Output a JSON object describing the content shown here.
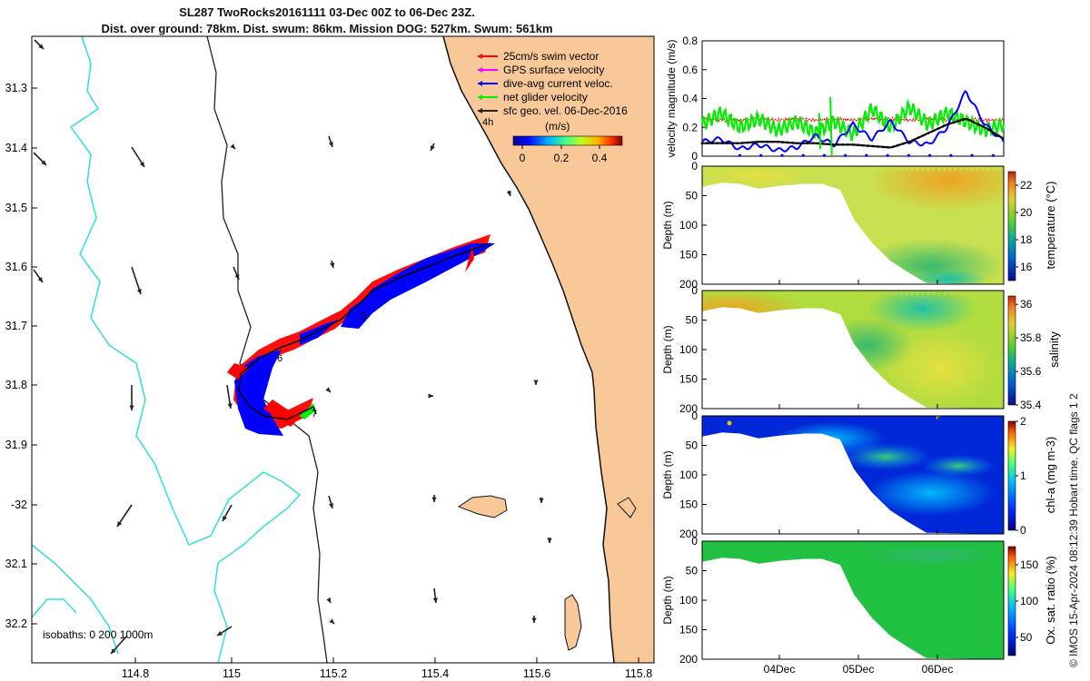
{
  "title": {
    "line1": "SL287 TwoRocks20161111 03-Dec 00Z to 06-Dec 23Z.",
    "line2": "Dist. over ground: 78km. Dist. swum: 86km. Mission DOG: 527km. Swum: 561km"
  },
  "credit": "© IMOS 15-Apr-2024 08:12:39 Hobart time. QC flags 1  2",
  "colors": {
    "land": "#f9c898",
    "coast": "#111111",
    "isobath200": "#222222",
    "isobath1000": "#33dddd",
    "swim": "#ff0000",
    "gps": "#ff00ff",
    "dac": "#0000ff",
    "net": "#00ee00",
    "sfc": "#222222"
  },
  "map": {
    "lon_ticks": [
      "114.8",
      "115",
      "115.2",
      "115.4",
      "115.6",
      "115.8"
    ],
    "lat_ticks": [
      "31.3",
      "31.4",
      "31.5",
      "31.6",
      "31.7",
      "31.8",
      "31.9",
      "-32",
      "32.1",
      "32.2"
    ],
    "legend": [
      {
        "label": "25cm/s swim vector",
        "key": "swim"
      },
      {
        "label": "GPS surface velocity",
        "key": "gps"
      },
      {
        "label": "dive-avg current veloc.",
        "key": "dac"
      },
      {
        "label": "net glider velocity",
        "key": "net"
      },
      {
        "label": "sfc geo. vel. 06-Dec-2016",
        "key": "sfc"
      }
    ],
    "colorbar_label": "(m/s)",
    "colorbar_ticks": [
      "0",
      "0.2",
      "0.4"
    ],
    "isobath_text": "isobaths: 0  200  1000m",
    "track_markers": [
      "4h",
      "5",
      "6",
      "7"
    ]
  },
  "chart_data": [
    {
      "type": "line",
      "ylabel": "velocity magnitude (m/s)",
      "ylim": [
        0,
        0.8
      ],
      "yticks": [
        "0",
        "0.2",
        "0.4",
        "0.6",
        "0.8"
      ],
      "t": [
        0,
        0.25,
        0.5,
        0.75,
        1.0,
        1.25,
        1.5,
        1.75,
        2.0,
        2.25,
        2.5,
        2.75,
        3.0,
        3.25,
        3.5,
        3.75,
        4.0
      ],
      "series": [
        {
          "name": "swim",
          "color": "#ff0000",
          "values": [
            0.26,
            0.25,
            0.25,
            0.26,
            0.25,
            0.26,
            0.25,
            0.26,
            0.25,
            0.26,
            0.26,
            0.25,
            0.26,
            0.25,
            0.26,
            0.25,
            0.25
          ]
        },
        {
          "name": "net glider",
          "color": "#00ee00",
          "values": [
            0.22,
            0.3,
            0.2,
            0.26,
            0.18,
            0.24,
            0.16,
            0.24,
            0.15,
            0.33,
            0.2,
            0.34,
            0.22,
            0.3,
            0.24,
            0.18,
            0.22
          ]
        },
        {
          "name": "dive-avg current",
          "color": "#0000ff",
          "values": [
            0.1,
            0.12,
            0.05,
            0.08,
            0.04,
            0.06,
            0.14,
            0.08,
            0.22,
            0.12,
            0.24,
            0.1,
            0.08,
            0.2,
            0.45,
            0.22,
            0.1
          ]
        },
        {
          "name": "sfc geo",
          "color": "#111111",
          "values": [
            0.09,
            0.09,
            0.09,
            0.1,
            0.1,
            0.09,
            0.09,
            0.08,
            0.08,
            0.07,
            0.06,
            0.1,
            0.16,
            0.22,
            0.26,
            0.2,
            0.12
          ]
        }
      ]
    },
    {
      "type": "heatmap",
      "ylabel": "Depth (m)",
      "ylim": [
        200,
        0
      ],
      "yticks": [
        "0",
        "50",
        "100",
        "150",
        "200"
      ],
      "cbar_label": "temperature (°C)",
      "cbar_ticks": [
        "16",
        "18",
        "20",
        "22"
      ],
      "cbar_range": [
        15,
        23
      ]
    },
    {
      "type": "heatmap",
      "ylabel": "Depth (m)",
      "ylim": [
        200,
        0
      ],
      "yticks": [
        "0",
        "50",
        "100",
        "150",
        "200"
      ],
      "cbar_label": "salinity",
      "cbar_ticks": [
        "35.4",
        "35.6",
        "35.8",
        "36"
      ],
      "cbar_range": [
        35.4,
        36.05
      ]
    },
    {
      "type": "heatmap",
      "ylabel": "Depth (m)",
      "ylim": [
        200,
        0
      ],
      "yticks": [
        "0",
        "50",
        "100",
        "150",
        "200"
      ],
      "cbar_label": "chl-a (mg m-3)",
      "cbar_ticks": [
        "0",
        "1",
        "2"
      ],
      "cbar_range": [
        0,
        2
      ]
    },
    {
      "type": "heatmap",
      "ylabel": "Depth (m)",
      "ylim": [
        200,
        0
      ],
      "yticks": [
        "0",
        "50",
        "100",
        "150",
        "200"
      ],
      "cbar_label": "Ox. sat. ratio (%)",
      "cbar_ticks": [
        "50",
        "100",
        "150"
      ],
      "cbar_range": [
        25,
        175
      ],
      "xticks": [
        "04Dec",
        "05Dec",
        "06Dec"
      ]
    }
  ]
}
